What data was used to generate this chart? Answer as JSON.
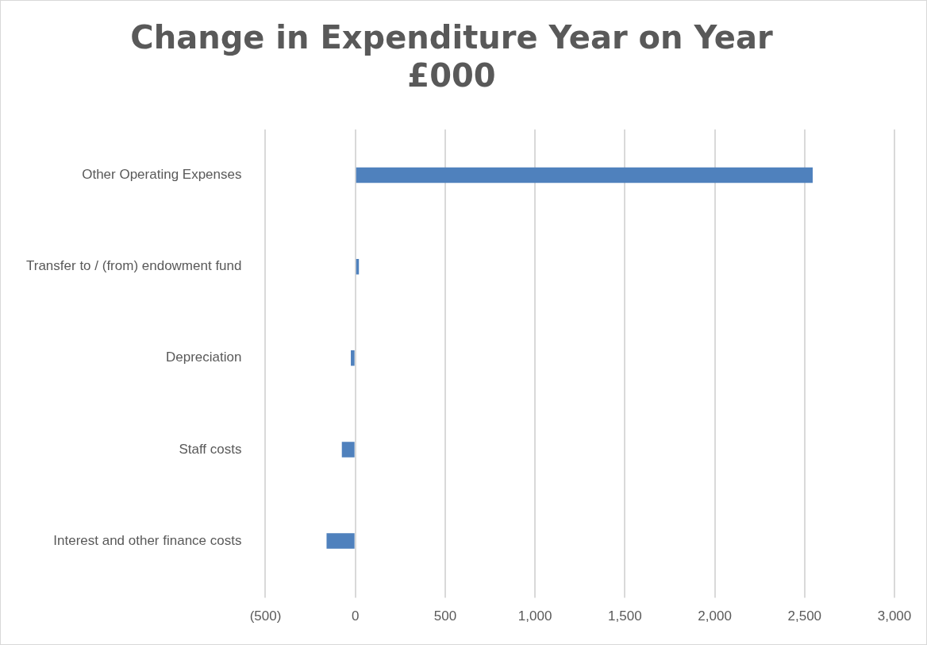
{
  "chart_data": {
    "type": "bar",
    "orientation": "horizontal",
    "title": "Change in Expenditure Year on Year\n£000",
    "categories": [
      "Other Operating Expenses",
      "Transfer to / (from) endowment fund",
      "Depreciation",
      "Staff costs",
      "Interest and other finance costs"
    ],
    "values": [
      2545,
      20,
      -25,
      -75,
      -160
    ],
    "color": "#4f81bd",
    "xlim": [
      -500,
      3000
    ],
    "xticks": [
      {
        "value": -500,
        "label": "(500)"
      },
      0,
      {
        "value": 500,
        "label": "500"
      },
      {
        "value": 1000,
        "label": "1,000"
      },
      {
        "value": 1500,
        "label": "1,500"
      },
      {
        "value": 2000,
        "label": "2,000"
      },
      {
        "value": 2500,
        "label": "2,500"
      },
      {
        "value": 3000,
        "label": "3,000"
      }
    ],
    "grid": "x",
    "legend": false
  }
}
